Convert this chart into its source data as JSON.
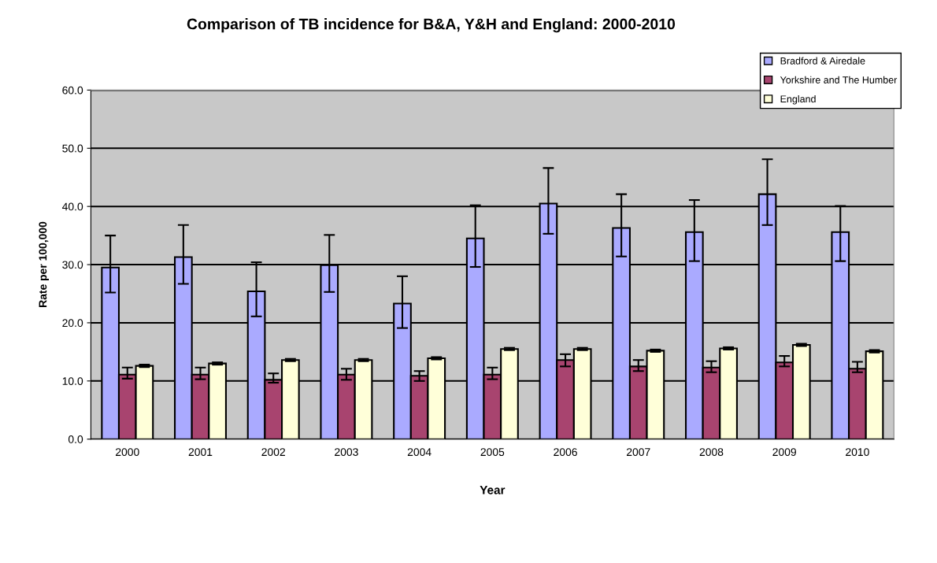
{
  "chart_data": {
    "type": "bar",
    "title": "Comparison of TB incidence for B&A, Y&H and England: 2000-2010",
    "xlabel": "Year",
    "ylabel": "Rate per 100,000",
    "categories": [
      "2000",
      "2001",
      "2002",
      "2003",
      "2004",
      "2005",
      "2006",
      "2007",
      "2008",
      "2009",
      "2010"
    ],
    "series": [
      {
        "name": "Bradford & Airedale",
        "color": "#aaaaff",
        "values": [
          29.5,
          31.3,
          25.4,
          29.9,
          23.3,
          34.5,
          40.5,
          36.3,
          35.6,
          42.1,
          35.6
        ],
        "errors": [
          [
            25.2,
            35.0
          ],
          [
            26.7,
            36.8
          ],
          [
            21.1,
            30.4
          ],
          [
            25.3,
            35.1
          ],
          [
            19.1,
            28.0
          ],
          [
            29.6,
            40.2
          ],
          [
            35.3,
            46.6
          ],
          [
            31.4,
            42.1
          ],
          [
            30.6,
            41.1
          ],
          [
            36.8,
            48.1
          ],
          [
            30.6,
            40.1
          ]
        ]
      },
      {
        "name": "Yorkshire and The Humber",
        "color": "#a8446f",
        "values": [
          11.1,
          11.1,
          10.2,
          11.1,
          10.9,
          11.1,
          13.6,
          12.5,
          12.3,
          13.2,
          12.1
        ],
        "errors": [
          [
            10.4,
            12.3
          ],
          [
            10.3,
            12.3
          ],
          [
            9.7,
            11.3
          ],
          [
            10.2,
            12.1
          ],
          [
            10.0,
            11.7
          ],
          [
            10.3,
            12.3
          ],
          [
            12.5,
            14.6
          ],
          [
            11.7,
            13.6
          ],
          [
            11.5,
            13.4
          ],
          [
            12.5,
            14.3
          ],
          [
            11.5,
            13.3
          ]
        ]
      },
      {
        "name": "England",
        "color": "#ffffd9",
        "values": [
          12.6,
          13.0,
          13.6,
          13.6,
          13.9,
          15.5,
          15.5,
          15.2,
          15.6,
          16.2,
          15.1
        ],
        "errors": [
          0.2,
          0.2,
          0.2,
          0.2,
          0.2,
          0.2,
          0.2,
          0.2,
          0.2,
          0.2,
          0.2
        ]
      }
    ],
    "ylim": [
      0,
      60
    ],
    "yticks": [
      {
        "value": 0,
        "label": "0.0"
      },
      {
        "value": 10,
        "label": "10.0"
      },
      {
        "value": 20,
        "label": "20.0"
      },
      {
        "value": 30,
        "label": "30.0"
      },
      {
        "value": 40,
        "label": "40.0"
      },
      {
        "value": 50,
        "label": "50.0"
      },
      {
        "value": 60,
        "label": "60.0"
      }
    ],
    "grid": "y",
    "legend": "top right"
  }
}
